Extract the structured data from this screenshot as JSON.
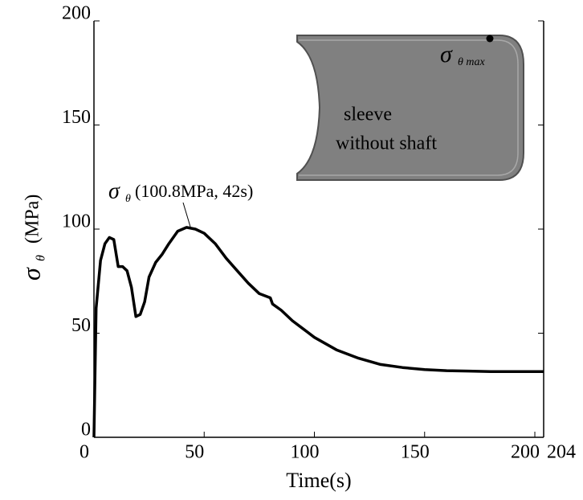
{
  "chart_data": {
    "type": "line",
    "x": [
      0,
      1,
      3,
      5,
      7,
      9,
      11,
      13,
      15,
      17,
      19,
      21,
      23,
      25,
      28,
      31,
      34,
      38,
      42,
      46,
      50,
      55,
      60,
      65,
      70,
      75,
      80,
      81,
      85,
      90,
      95,
      100,
      110,
      120,
      130,
      140,
      150,
      160,
      170,
      180,
      190,
      204
    ],
    "values": [
      0,
      62,
      85,
      93,
      96,
      95,
      82,
      82,
      80,
      72,
      58,
      59,
      65,
      77,
      84,
      88,
      93,
      99,
      100.8,
      100,
      98,
      93,
      86,
      80,
      74,
      69,
      67,
      64,
      61,
      56,
      52,
      48,
      42,
      38,
      35,
      33.5,
      32.5,
      32,
      31.8,
      31.6,
      31.6,
      31.6
    ],
    "color": "#000000",
    "xlim": [
      0,
      204
    ],
    "xticks": [
      0,
      50,
      100,
      150,
      200,
      204
    ],
    "ylim": [
      0,
      200
    ],
    "yticks": [
      0,
      50,
      100,
      150,
      200
    ],
    "xlabel": "Time(s)",
    "ylabel": {
      "symbol": "σ",
      "subscript": "θ",
      "unit": "(MPa)"
    },
    "annotation": {
      "symbol": "σ",
      "subscript": "θ",
      "text": "(100.8MPa, 42s)"
    },
    "inset": {
      "symbol": "σ",
      "subscript": "θ max",
      "line1": "sleeve",
      "line2": "without shaft"
    }
  }
}
